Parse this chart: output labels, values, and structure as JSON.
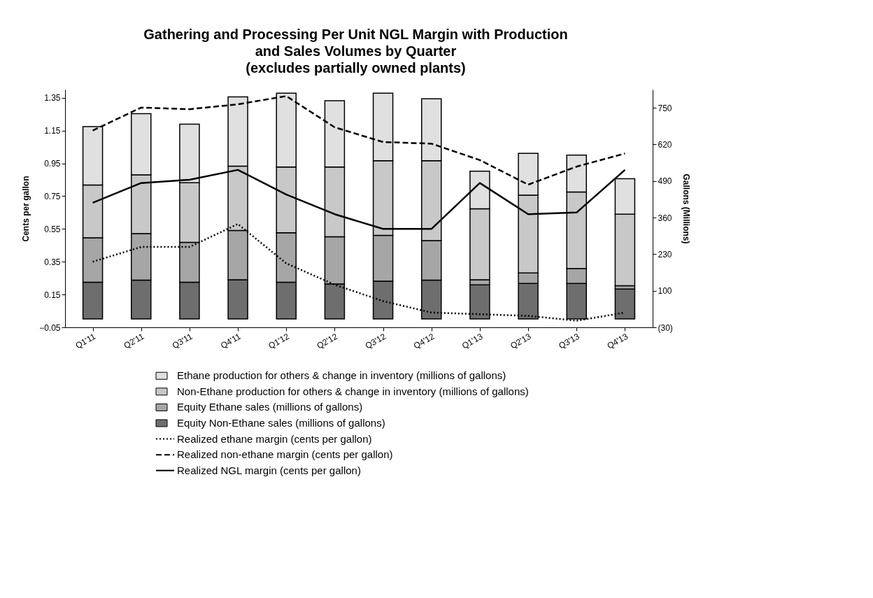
{
  "chart_data": {
    "type": "bar",
    "title": "Gathering and Processing Per Unit NGL Margin with Production and Sales Volumes by Quarter (excludes partially owned plants)",
    "ylabel": "Cents per gallon",
    "y2label": "Gallons (Millions)",
    "categories": [
      "Q1'11",
      "Q2'11",
      "Q3'11",
      "Q4'11",
      "Q1'12",
      "Q2'12",
      "Q3'12",
      "Q4'12",
      "Q1'13",
      "Q2'13",
      "Q3'13",
      "Q4'13"
    ],
    "stacked": true,
    "legend": "bottom",
    "grid": false,
    "ylim": [
      -0.05,
      1.4
    ],
    "yticks": [
      -0.05,
      0.15,
      0.35,
      0.55,
      0.75,
      0.95,
      1.15,
      1.35
    ],
    "y2lim": [
      -30,
      815
    ],
    "y2ticks": [
      {
        "value": -30,
        "label": "(30)"
      },
      100,
      230,
      360,
      490,
      620,
      750
    ],
    "series": [
      {
        "name": "Equity Non-Ethane sales (millions of gallons)",
        "axis": "y2",
        "color": "#6e6e6e",
        "values": [
          130,
          138,
          130,
          139,
          130,
          124,
          134,
          138,
          121,
          126,
          126,
          106
        ]
      },
      {
        "name": "Equity Ethane sales (millions of gallons)",
        "axis": "y2",
        "color": "#a6a6a6",
        "values": [
          158,
          165,
          142,
          175,
          176,
          168,
          163,
          140,
          18,
          37,
          53,
          12
        ]
      },
      {
        "name": "Non-Ethane production for others & change in inventory (millions of gallons)",
        "axis": "y2",
        "color": "#c8c8c8",
        "values": [
          188,
          209,
          212,
          229,
          234,
          248,
          265,
          284,
          252,
          277,
          272,
          254
        ]
      },
      {
        "name": "Ethane production for others & change in inventory (millions of gallons)",
        "axis": "y2",
        "color": "#e0e0e0",
        "values": [
          207,
          217,
          208,
          246,
          262,
          235,
          240,
          220,
          134,
          148,
          131,
          126
        ]
      },
      {
        "name": "Realized ethane margin (cents per gallon)",
        "type": "line",
        "line_style": "dotted",
        "color": "#000000",
        "values": [
          0.35,
          0.44,
          0.44,
          0.58,
          0.34,
          0.21,
          0.11,
          0.04,
          0.03,
          0.02,
          -0.01,
          0.04
        ]
      },
      {
        "name": "Realized non-ethane margin (cents per gallon)",
        "type": "line",
        "line_style": "dashed",
        "color": "#000000",
        "values": [
          1.15,
          1.29,
          1.28,
          1.31,
          1.36,
          1.17,
          1.08,
          1.07,
          0.97,
          0.82,
          0.93,
          1.01
        ]
      },
      {
        "name": "Realized NGL margin (cents per gallon)",
        "type": "line",
        "line_style": "solid",
        "color": "#000000",
        "values": [
          0.71,
          0.83,
          0.85,
          0.91,
          0.76,
          0.64,
          0.55,
          0.55,
          0.83,
          0.64,
          0.65,
          0.91
        ]
      }
    ]
  }
}
